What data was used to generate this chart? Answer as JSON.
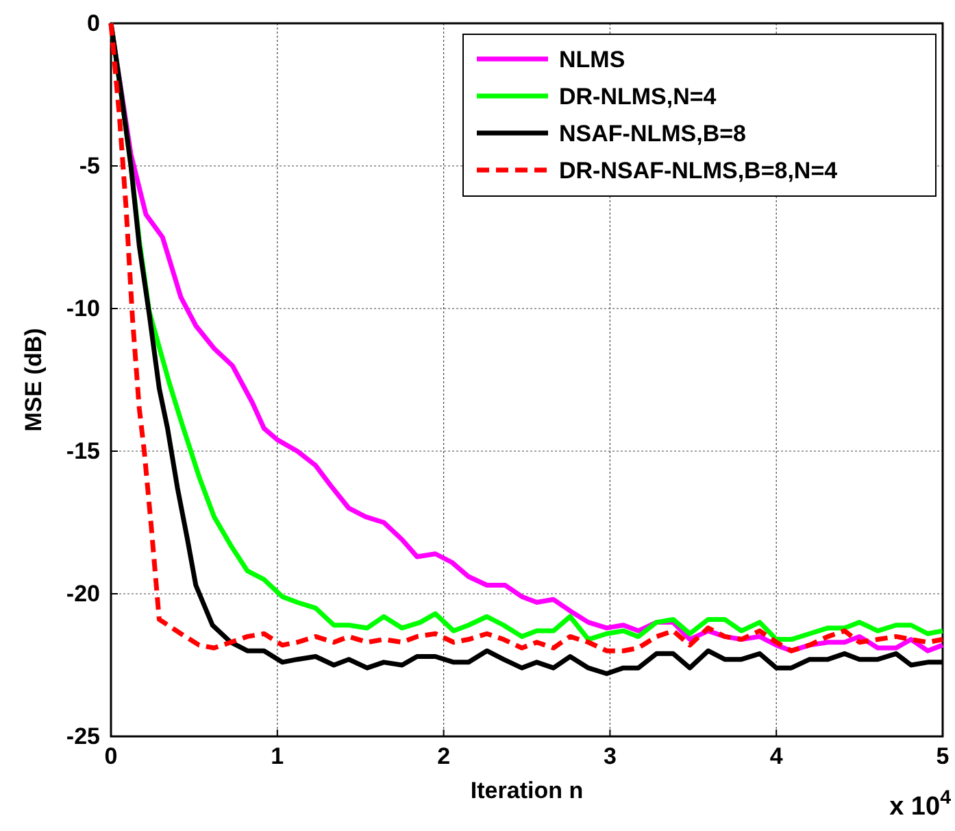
{
  "chart_data": {
    "type": "line",
    "xlabel": "Iteration n",
    "ylabel": "MSE (dB)",
    "annotations": [
      "x 10$^{4}$"
    ],
    "xlim": [
      0,
      5
    ],
    "xticks": [
      0,
      1,
      2,
      3,
      4,
      5
    ],
    "ylim": [
      -25,
      0
    ],
    "yticks": [
      -25,
      -20,
      -15,
      -10,
      -5,
      0
    ],
    "grid": true,
    "legend": "top right",
    "line_style": "solid",
    "series": [
      {
        "name": "NLMS",
        "color": "#ff00ff",
        "x": [
          0,
          0.12,
          0.21,
          0.31,
          0.42,
          0.51,
          0.62,
          0.73,
          0.85,
          0.92,
          1.0,
          1.12,
          1.23,
          1.32,
          1.43,
          1.53,
          1.64,
          1.75,
          1.84,
          1.95,
          2.05,
          2.15,
          2.26,
          2.37,
          2.47,
          2.56,
          2.66,
          2.76,
          2.87,
          2.98,
          3.08,
          3.17,
          3.28,
          3.38,
          3.48,
          3.59,
          3.69,
          3.79,
          3.9,
          4.0,
          4.09,
          4.2,
          4.31,
          4.41,
          4.5,
          4.61,
          4.72,
          4.81,
          4.91,
          5.0
        ],
        "values": [
          0,
          -4.6,
          -6.7,
          -7.5,
          -9.6,
          -10.6,
          -11.4,
          -12.0,
          -13.3,
          -14.2,
          -14.6,
          -15.0,
          -15.5,
          -16.2,
          -17.0,
          -17.3,
          -17.5,
          -18.1,
          -18.7,
          -18.6,
          -18.9,
          -19.4,
          -19.7,
          -19.7,
          -20.1,
          -20.3,
          -20.2,
          -20.6,
          -21.0,
          -21.2,
          -21.1,
          -21.3,
          -21.0,
          -21.0,
          -21.6,
          -21.3,
          -21.5,
          -21.6,
          -21.5,
          -21.8,
          -22.0,
          -21.8,
          -21.7,
          -21.7,
          -21.5,
          -21.9,
          -21.9,
          -21.6,
          -22.0,
          -21.8
        ]
      },
      {
        "name": "DR-NLMS,N=4",
        "color": "#00ff00",
        "x": [
          0,
          0.06,
          0.12,
          0.17,
          0.23,
          0.35,
          0.43,
          0.53,
          0.62,
          0.72,
          0.82,
          0.92,
          1.03,
          1.12,
          1.23,
          1.34,
          1.43,
          1.54,
          1.64,
          1.75,
          1.86,
          1.95,
          2.06,
          2.15,
          2.26,
          2.36,
          2.47,
          2.56,
          2.66,
          2.76,
          2.87,
          2.98,
          3.08,
          3.17,
          3.28,
          3.38,
          3.48,
          3.59,
          3.69,
          3.79,
          3.9,
          4.0,
          4.09,
          4.2,
          4.31,
          4.41,
          4.5,
          4.61,
          4.72,
          4.81,
          4.91,
          5.0
        ],
        "values": [
          0,
          -2.4,
          -5.0,
          -7.6,
          -10.1,
          -12.6,
          -14.1,
          -15.9,
          -17.3,
          -18.3,
          -19.2,
          -19.5,
          -20.1,
          -20.3,
          -20.5,
          -21.1,
          -21.1,
          -21.2,
          -20.8,
          -21.2,
          -21.0,
          -20.7,
          -21.3,
          -21.1,
          -20.8,
          -21.1,
          -21.5,
          -21.3,
          -21.3,
          -20.8,
          -21.6,
          -21.4,
          -21.3,
          -21.5,
          -21.0,
          -20.9,
          -21.4,
          -20.9,
          -20.9,
          -21.3,
          -21.0,
          -21.6,
          -21.6,
          -21.4,
          -21.2,
          -21.2,
          -21.0,
          -21.3,
          -21.1,
          -21.1,
          -21.4,
          -21.3
        ]
      },
      {
        "name": "NSAF-NLMS,B=8",
        "color": "#000000",
        "x": [
          0,
          0.06,
          0.12,
          0.17,
          0.23,
          0.29,
          0.34,
          0.4,
          0.46,
          0.51,
          0.61,
          0.72,
          0.82,
          0.92,
          1.03,
          1.12,
          1.23,
          1.34,
          1.43,
          1.54,
          1.64,
          1.75,
          1.84,
          1.95,
          2.06,
          2.15,
          2.26,
          2.36,
          2.47,
          2.56,
          2.66,
          2.76,
          2.87,
          2.98,
          3.08,
          3.17,
          3.28,
          3.38,
          3.48,
          3.59,
          3.69,
          3.79,
          3.9,
          4.0,
          4.09,
          4.2,
          4.31,
          4.41,
          4.5,
          4.61,
          4.72,
          4.81,
          4.91,
          5.0
        ],
        "values": [
          0,
          -2.4,
          -5.0,
          -7.8,
          -10.2,
          -12.8,
          -14.2,
          -16.3,
          -18.1,
          -19.7,
          -21.1,
          -21.7,
          -22.0,
          -22.0,
          -22.4,
          -22.3,
          -22.2,
          -22.5,
          -22.3,
          -22.6,
          -22.4,
          -22.5,
          -22.2,
          -22.2,
          -22.4,
          -22.4,
          -22.0,
          -22.3,
          -22.6,
          -22.4,
          -22.6,
          -22.2,
          -22.6,
          -22.8,
          -22.6,
          -22.6,
          -22.1,
          -22.1,
          -22.6,
          -22.0,
          -22.3,
          -22.3,
          -22.1,
          -22.6,
          -22.6,
          -22.3,
          -22.3,
          -22.1,
          -22.3,
          -22.3,
          -22.1,
          -22.5,
          -22.4,
          -22.4
        ]
      },
      {
        "name": "DR-NSAF-NLMS,B=8,N=4",
        "color": "#ff0000",
        "line_style": "dashed",
        "x": [
          0,
          0.05,
          0.09,
          0.13,
          0.17,
          0.2,
          0.24,
          0.29,
          0.42,
          0.53,
          0.62,
          0.72,
          0.82,
          0.92,
          1.03,
          1.12,
          1.23,
          1.34,
          1.43,
          1.54,
          1.64,
          1.75,
          1.84,
          1.95,
          2.06,
          2.15,
          2.26,
          2.36,
          2.47,
          2.56,
          2.66,
          2.76,
          2.87,
          2.98,
          3.08,
          3.17,
          3.28,
          3.38,
          3.48,
          3.59,
          3.69,
          3.79,
          3.9,
          4.0,
          4.09,
          4.2,
          4.31,
          4.41,
          4.5,
          4.61,
          4.72,
          4.81,
          4.91,
          5.0
        ],
        "values": [
          0,
          -3.2,
          -6.4,
          -10.4,
          -13.5,
          -15.0,
          -17.5,
          -20.9,
          -21.4,
          -21.8,
          -21.9,
          -21.7,
          -21.5,
          -21.4,
          -21.8,
          -21.7,
          -21.5,
          -21.7,
          -21.5,
          -21.7,
          -21.6,
          -21.7,
          -21.5,
          -21.4,
          -21.7,
          -21.6,
          -21.4,
          -21.6,
          -21.9,
          -21.7,
          -21.9,
          -21.5,
          -21.7,
          -22.0,
          -22.0,
          -21.9,
          -21.5,
          -21.3,
          -21.8,
          -21.2,
          -21.5,
          -21.6,
          -21.3,
          -21.7,
          -22.0,
          -21.8,
          -21.5,
          -21.3,
          -21.7,
          -21.6,
          -21.5,
          -21.6,
          -21.7,
          -21.6
        ]
      }
    ]
  }
}
